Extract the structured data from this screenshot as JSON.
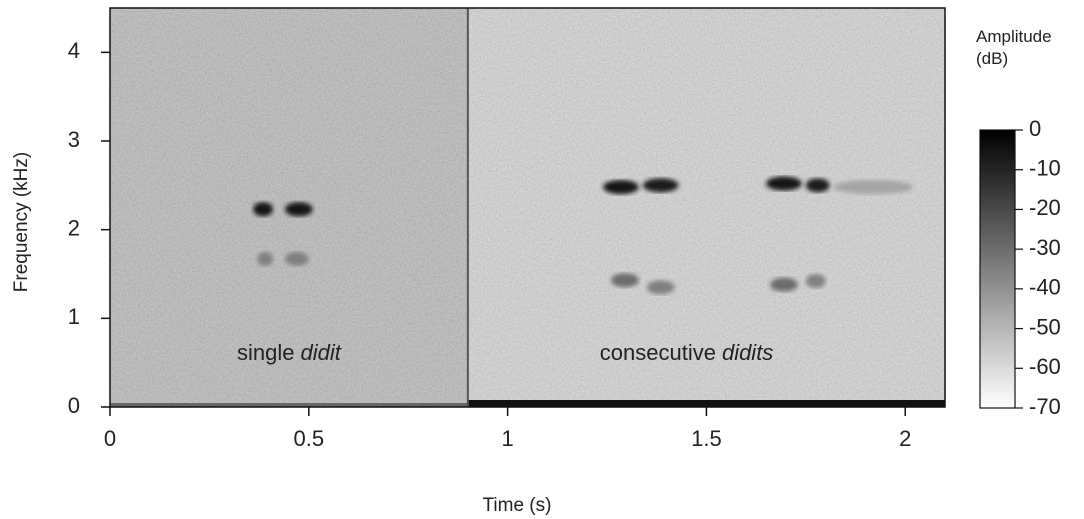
{
  "chart_data": {
    "type": "spectrogram",
    "x_label": "Time (s)",
    "y_label": "Frequency (kHz)",
    "colorbar_label": "Amplitude (dB)",
    "xlim": [
      0,
      2.1
    ],
    "ylim": [
      0,
      4.5
    ],
    "xticks": [
      0,
      0.5,
      1,
      1.5,
      2
    ],
    "yticks": [
      0,
      1,
      2,
      3,
      4
    ],
    "clim": [
      -70,
      0
    ],
    "cticks": [
      0,
      -10,
      -20,
      -30,
      -40,
      -50,
      -60,
      -70
    ],
    "divider": 0.9,
    "annotations": [
      {
        "text": "single",
        "italic": "didit",
        "x": 0.45
      },
      {
        "text": "consecutive",
        "italic": "didits",
        "x": 1.45
      }
    ],
    "bands": [
      {
        "t": [
          0.36,
          0.41
        ],
        "f": 2.23,
        "db": -5
      },
      {
        "t": [
          0.44,
          0.51
        ],
        "f": 2.23,
        "db": -5
      },
      {
        "t": [
          0.37,
          0.41
        ],
        "f": 1.67,
        "db": -35
      },
      {
        "t": [
          0.44,
          0.5
        ],
        "f": 1.67,
        "db": -35
      },
      {
        "t": [
          1.24,
          1.33
        ],
        "f": 2.48,
        "db": -5
      },
      {
        "t": [
          1.34,
          1.43
        ],
        "f": 2.5,
        "db": -8
      },
      {
        "t": [
          1.65,
          1.74
        ],
        "f": 2.52,
        "db": -5
      },
      {
        "t": [
          1.75,
          1.81
        ],
        "f": 2.5,
        "db": -8
      },
      {
        "t": [
          1.82,
          2.02
        ],
        "f": 2.48,
        "db": -45
      },
      {
        "t": [
          1.26,
          1.33
        ],
        "f": 1.43,
        "db": -30
      },
      {
        "t": [
          1.35,
          1.42
        ],
        "f": 1.35,
        "db": -35
      },
      {
        "t": [
          1.66,
          1.73
        ],
        "f": 1.38,
        "db": -30
      },
      {
        "t": [
          1.75,
          1.8
        ],
        "f": 1.42,
        "db": -35
      }
    ]
  }
}
